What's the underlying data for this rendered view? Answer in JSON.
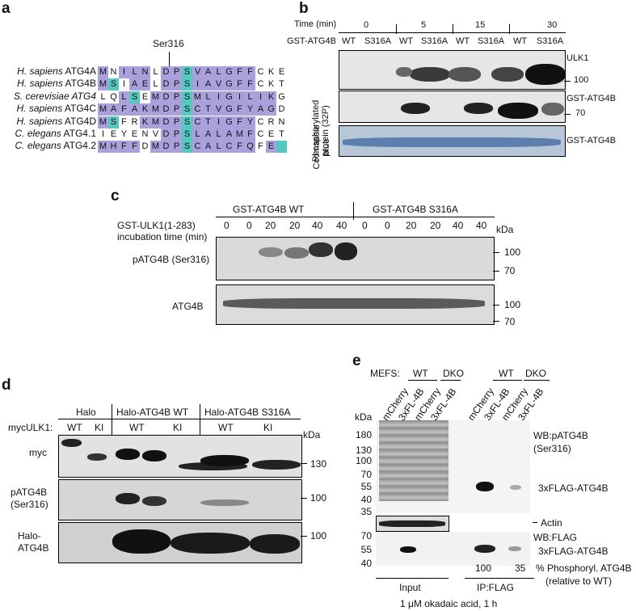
{
  "panel_a": {
    "label": "a",
    "site": "Ser316",
    "species_rows": [
      {
        "species": "H. sapiens",
        "gene": "ATG4A",
        "seq": "MNILNLDPSVALGFFCKE"
      },
      {
        "species": "H. sapiens",
        "gene": "ATG4B",
        "seq": "MSIAELDPSIAVGFFCKT"
      },
      {
        "species": "S. cerevisiae",
        "gene": "ATG4",
        "seq": "LQLSEMDPSMLIGILIKG"
      },
      {
        "species": "H. sapiens",
        "gene": "ATG4C",
        "seq": "MAFAKMDPSCTVGFYAGD"
      },
      {
        "species": "H. sapiens",
        "gene": "ATG4D",
        "seq": "MSFRKMDPSCTIGFYCRN"
      },
      {
        "species": "C. elegans",
        "gene": "ATG4.1",
        "seq": "IEYENVDPSLALAMFCET"
      },
      {
        "species": "C. elegans",
        "gene": "ATG4.2",
        "seq": "MHFFDMDPSCALCFQFE"
      }
    ],
    "colors": {
      "purple": "#a9a0dc",
      "teal": "#55c9bf"
    }
  },
  "panel_b": {
    "label": "b",
    "time_header": "Time (min)",
    "times": [
      "0",
      "5",
      "15",
      "30"
    ],
    "construct": "GST-ATG4B",
    "lanes": [
      "WT",
      "S316A",
      "WT",
      "S316A",
      "WT",
      "S316A",
      "WT",
      "S316A"
    ],
    "row_label_1": "Phosphorylated protein (32P)",
    "row_label_2": "Coomassie blue",
    "right_labels": [
      "ULK1",
      "100",
      "GST-ATG4B",
      "70",
      "GST-ATG4B"
    ]
  },
  "panel_c": {
    "label": "c",
    "group1": "GST-ATG4B WT",
    "group2": "GST-ATG4B S316A",
    "condition_label_1": "GST-ULK1(1-283)",
    "condition_label_2": "incubation time (min)",
    "times": [
      "0",
      "0",
      "20",
      "20",
      "40",
      "40",
      "0",
      "0",
      "20",
      "20",
      "40",
      "40"
    ],
    "kda": "kDa",
    "row1": "pATG4B (Ser316)",
    "row2": "ATG4B",
    "markers_row1": [
      "100",
      "70"
    ],
    "markers_row2": [
      "100",
      "70"
    ]
  },
  "panel_d": {
    "label": "d",
    "groups": [
      "Halo",
      "Halo-ATG4B WT",
      "Halo-ATG4B S316A"
    ],
    "myc_label": "mycULK1:",
    "sub": [
      "WT",
      "KI",
      "WT",
      "KI",
      "WT",
      "KI"
    ],
    "kda": "kDa",
    "rows": [
      "myc",
      "pATG4B (Ser316)",
      "Halo-ATG4B"
    ],
    "markers": [
      "130",
      "100",
      "100"
    ]
  },
  "panel_e": {
    "label": "e",
    "mefs": "MEFS:",
    "wt": "WT",
    "dko": "DKO",
    "lanes": [
      "mCherry",
      "3xFL-4B",
      "mCherry",
      "3xFL-4B",
      "mCherry",
      "3xFL-4B",
      "mCherry",
      "3xFL-4B"
    ],
    "kda": "kDa",
    "markers_top": [
      "180",
      "130",
      "100",
      "70",
      "55",
      "40",
      "35"
    ],
    "markers_bottom": [
      "70",
      "55",
      "40"
    ],
    "wb1_line1": "WB:pATG4B",
    "wb1_line2": "(Ser316)",
    "band1": "3xFLAG-ATG4B",
    "actin": "Actin",
    "wb2": "WB:FLAG",
    "band2": "3xFLAG-ATG4B",
    "pct_values": [
      "100",
      "35"
    ],
    "pct_label_1": "% Phosphoryl. ATG4B",
    "pct_label_2": "(relative to WT)",
    "input": "Input",
    "ip": "IP:FLAG",
    "footer": "1 μM okadaic acid, 1 h"
  }
}
